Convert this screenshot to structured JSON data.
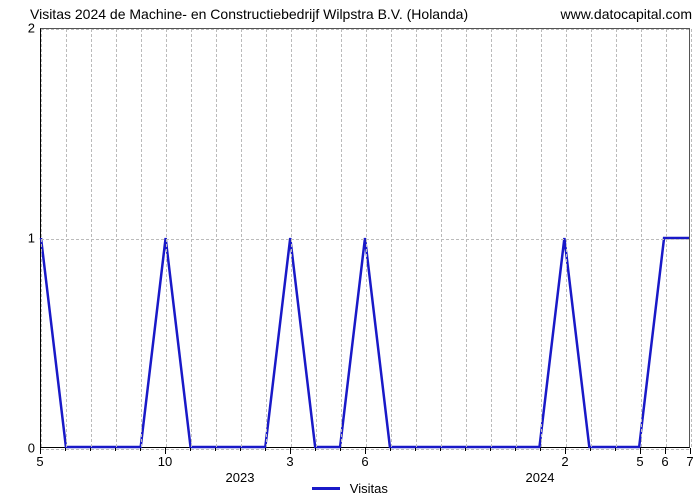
{
  "chart": {
    "type": "line",
    "title_left": "Visitas 2024 de Machine- en Constructiebedrijf Wilpstra B.V. (Holanda)",
    "title_right": "www.datocapital.com",
    "title_fontsize": 14,
    "background_color": "#ffffff",
    "grid_color": "#bbbbbb",
    "axis_color": "#000000",
    "y": {
      "lim": [
        0,
        2
      ],
      "ticks": [
        0,
        1,
        2
      ]
    },
    "x": {
      "n_points": 27,
      "major_labels": [
        {
          "idx": 0,
          "label": "5"
        },
        {
          "idx": 5,
          "label": "10"
        },
        {
          "idx": 10,
          "label": "3"
        },
        {
          "idx": 13,
          "label": "6"
        },
        {
          "idx": 21,
          "label": "2"
        },
        {
          "idx": 24,
          "label": "5"
        },
        {
          "idx": 25,
          "label": "6"
        },
        {
          "idx": 26,
          "label": "7"
        }
      ],
      "minor_idx": [
        1,
        2,
        3,
        4,
        6,
        7,
        8,
        9,
        11,
        12,
        14,
        15,
        16,
        17,
        18,
        19,
        20,
        22,
        23
      ],
      "year_labels": [
        {
          "idx": 8,
          "label": "2023"
        },
        {
          "idx": 20,
          "label": "2024"
        }
      ]
    },
    "series": {
      "name": "Visitas",
      "color": "#1919c8",
      "line_width": 2.5,
      "values": [
        1,
        0,
        0,
        0,
        0,
        1,
        0,
        0,
        0,
        0,
        1,
        0,
        0,
        1,
        0,
        0,
        0,
        0,
        0,
        0,
        0,
        1,
        0,
        0,
        0,
        1,
        1
      ]
    },
    "legend": {
      "label": "Visitas",
      "color": "#1919c8"
    }
  }
}
